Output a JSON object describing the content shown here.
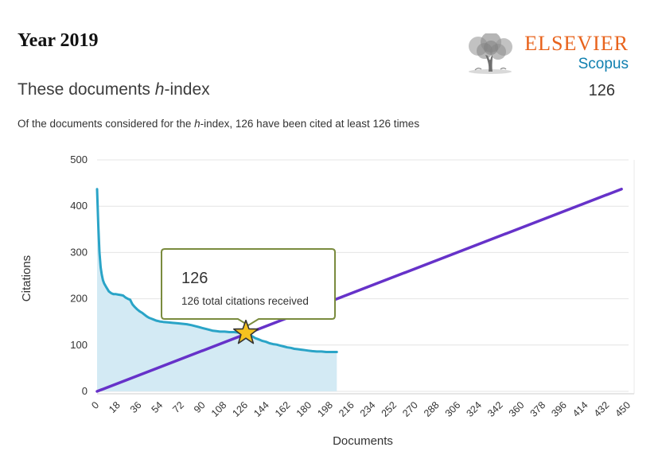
{
  "page": {
    "title": "Year 2019"
  },
  "logo": {
    "elsevier": "ELSEVIER",
    "scopus": "Scopus",
    "elsevier_color": "#E8631C",
    "scopus_color": "#1080B0",
    "tree_color": "#8a8a8a"
  },
  "section": {
    "title_prefix": "These documents ",
    "title_italic": "h",
    "title_suffix": "-index",
    "hindex_value": "126"
  },
  "subtitle": {
    "prefix": "Of the documents considered for the ",
    "italic": "h",
    "suffix": "-index, 126 have been cited at least 126 times"
  },
  "chart_data": {
    "type": "line",
    "xlabel": "Documents",
    "ylabel": "Citations",
    "xlim": [
      0,
      450
    ],
    "ylim": [
      0,
      500
    ],
    "x_ticks": [
      0,
      18,
      36,
      54,
      72,
      90,
      108,
      126,
      144,
      162,
      180,
      198,
      216,
      234,
      252,
      270,
      288,
      306,
      324,
      342,
      360,
      378,
      396,
      414,
      432,
      450
    ],
    "y_ticks": [
      0,
      100,
      200,
      300,
      400,
      500
    ],
    "grid": "horizontal",
    "legend": "none",
    "series": [
      {
        "name": "citations per document (sorted)",
        "style": "area-line",
        "color": "#2AA4C7",
        "fill": "#D3EAF4",
        "points": [
          [
            0,
            437
          ],
          [
            1,
            360
          ],
          [
            2,
            300
          ],
          [
            3,
            268
          ],
          [
            4,
            252
          ],
          [
            5,
            240
          ],
          [
            6,
            233
          ],
          [
            8,
            224
          ],
          [
            10,
            216
          ],
          [
            12,
            212
          ],
          [
            14,
            210
          ],
          [
            16,
            210
          ],
          [
            18,
            209
          ],
          [
            20,
            208
          ],
          [
            22,
            207
          ],
          [
            24,
            203
          ],
          [
            26,
            200
          ],
          [
            28,
            198
          ],
          [
            29,
            193
          ],
          [
            30,
            188
          ],
          [
            32,
            182
          ],
          [
            34,
            177
          ],
          [
            36,
            173
          ],
          [
            38,
            170
          ],
          [
            40,
            166
          ],
          [
            42,
            162
          ],
          [
            44,
            159
          ],
          [
            46,
            157
          ],
          [
            48,
            155
          ],
          [
            50,
            153
          ],
          [
            53,
            151
          ],
          [
            56,
            150
          ],
          [
            60,
            149
          ],
          [
            64,
            148
          ],
          [
            68,
            147
          ],
          [
            72,
            146
          ],
          [
            76,
            145
          ],
          [
            80,
            143
          ],
          [
            83,
            141
          ],
          [
            86,
            139
          ],
          [
            89,
            137
          ],
          [
            92,
            135
          ],
          [
            95,
            133
          ],
          [
            98,
            131
          ],
          [
            101,
            130
          ],
          [
            104,
            129
          ],
          [
            108,
            129
          ],
          [
            112,
            128
          ],
          [
            116,
            128
          ],
          [
            120,
            127
          ],
          [
            123,
            127
          ],
          [
            126,
            126
          ],
          [
            128,
            124
          ],
          [
            130,
            121
          ],
          [
            132,
            118
          ],
          [
            134,
            115
          ],
          [
            136,
            113
          ],
          [
            138,
            111
          ],
          [
            140,
            109
          ],
          [
            143,
            107
          ],
          [
            146,
            104
          ],
          [
            149,
            102
          ],
          [
            152,
            101
          ],
          [
            155,
            99
          ],
          [
            158,
            97
          ],
          [
            161,
            95
          ],
          [
            164,
            94
          ],
          [
            167,
            92
          ],
          [
            170,
            91
          ],
          [
            173,
            90
          ],
          [
            176,
            89
          ],
          [
            179,
            88
          ],
          [
            182,
            87
          ],
          [
            186,
            86
          ],
          [
            190,
            86
          ],
          [
            194,
            85
          ],
          [
            198,
            85
          ],
          [
            203,
            85
          ]
        ]
      },
      {
        "name": "h-index threshold line (y = x)",
        "style": "line",
        "color": "#6632C9",
        "points": [
          [
            0,
            0
          ],
          [
            444,
            437
          ]
        ]
      }
    ],
    "marker": {
      "name": "h-index point",
      "x": 126,
      "y": 126,
      "color": "#F5C21F",
      "stroke": "#333333"
    },
    "tooltip": {
      "title": "126",
      "body": "126 total citations received",
      "border_color": "#7A8B3E"
    }
  }
}
